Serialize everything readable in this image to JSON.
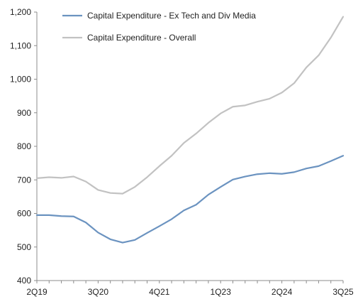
{
  "chart_data": {
    "type": "line",
    "x": [
      "2Q19",
      "3Q19",
      "4Q19",
      "1Q20",
      "2Q20",
      "3Q20",
      "4Q20",
      "1Q21",
      "2Q21",
      "3Q21",
      "4Q21",
      "1Q22",
      "2Q22",
      "3Q22",
      "4Q22",
      "1Q23",
      "2Q23",
      "3Q23",
      "4Q23",
      "1Q24",
      "2Q24",
      "3Q24",
      "4Q24",
      "1Q25",
      "2Q25",
      "3Q25"
    ],
    "x_tick_labels": [
      "2Q19",
      "3Q20",
      "4Q21",
      "1Q23",
      "2Q24",
      "3Q25"
    ],
    "ylim": [
      400,
      1200
    ],
    "yticks": [
      400,
      500,
      600,
      700,
      800,
      900,
      1000,
      1100,
      1200
    ],
    "ytick_labels": [
      "400",
      "500",
      "600",
      "700",
      "800",
      "900",
      "1,000",
      "1,100",
      "1,200"
    ],
    "grid": false,
    "legend_position": "top-left",
    "series": [
      {
        "name": "Capital Expenditure - Ex Tech and Div Media",
        "color": "#6b93c0",
        "values": [
          595,
          595,
          592,
          591,
          573,
          543,
          523,
          513,
          521,
          542,
          562,
          583,
          609,
          626,
          656,
          679,
          701,
          710,
          717,
          720,
          718,
          723,
          734,
          741,
          756,
          772
        ]
      },
      {
        "name": "Capital Expenditure - Overall",
        "color": "#c2c2c2",
        "values": [
          705,
          708,
          706,
          710,
          695,
          670,
          661,
          659,
          679,
          708,
          741,
          772,
          810,
          838,
          870,
          898,
          918,
          922,
          933,
          942,
          960,
          988,
          1035,
          1071,
          1124,
          1186
        ]
      }
    ]
  }
}
